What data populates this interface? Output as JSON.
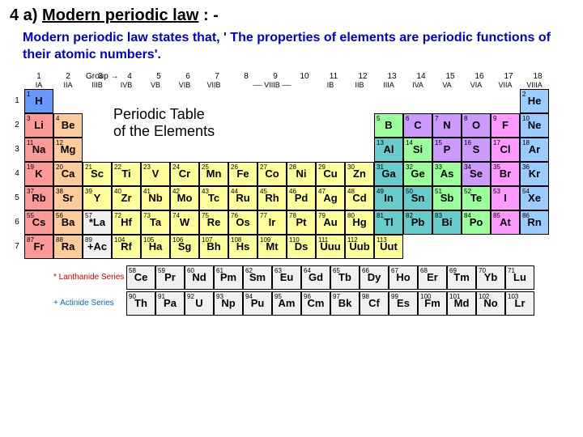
{
  "heading_prefix": "4 a) ",
  "heading_main": "Modern periodic law",
  "heading_suffix": " : -",
  "subheading": "Modern periodic law states that, ' The properties of elements are periodic functions of their atomic numbers'.",
  "inset_title_l1": "Periodic Table",
  "inset_title_l2": "of the Elements",
  "group_arrow": "Group →",
  "groups_top": [
    "1",
    "2",
    "3",
    "4",
    "5",
    "6",
    "7",
    "8",
    "9",
    "10",
    "11",
    "12",
    "13",
    "14",
    "15",
    "16",
    "17",
    "18"
  ],
  "groups_roman": [
    "IA",
    "IIA",
    "IIIB",
    "IVB",
    "VB",
    "VIB",
    "VIIB",
    "── VIIIB ──",
    "IB",
    "IIB",
    "IIIA",
    "IVA",
    "VA",
    "VIA",
    "VIIA",
    "VIIIA"
  ],
  "periods": [
    "1",
    "2",
    "3",
    "4",
    "5",
    "6",
    "7"
  ],
  "lanth_label": "* Lanthanide Series",
  "act_label": "+ Actinide Series",
  "colors": {
    "h": "#6699ff",
    "alkali": "#ff9999",
    "alkaline": "#ffcc99",
    "transition": "#ffff99",
    "metalloid": "#99ff99",
    "postmetal": "#66cccc",
    "nonmetal": "#cc99ff",
    "halogen": "#ff99ff",
    "noble": "#99ccff",
    "lanth": "#f0f0f0",
    "act": "#f0f0f0"
  },
  "elements": {
    "H": {
      "n": "1",
      "c": "h"
    },
    "He": {
      "n": "2",
      "c": "noble"
    },
    "Li": {
      "n": "3",
      "c": "alkali"
    },
    "Be": {
      "n": "4",
      "c": "alkaline"
    },
    "B": {
      "n": "5",
      "c": "metalloid"
    },
    "C": {
      "n": "6",
      "c": "nonmetal"
    },
    "N": {
      "n": "7",
      "c": "nonmetal"
    },
    "O": {
      "n": "8",
      "c": "nonmetal"
    },
    "F": {
      "n": "9",
      "c": "halogen"
    },
    "Ne": {
      "n": "10",
      "c": "noble"
    },
    "Na": {
      "n": "11",
      "c": "alkali"
    },
    "Mg": {
      "n": "12",
      "c": "alkaline"
    },
    "Al": {
      "n": "13",
      "c": "postmetal"
    },
    "Si": {
      "n": "14",
      "c": "metalloid"
    },
    "P": {
      "n": "15",
      "c": "nonmetal"
    },
    "S": {
      "n": "16",
      "c": "nonmetal"
    },
    "Cl": {
      "n": "17",
      "c": "halogen"
    },
    "Ar": {
      "n": "18",
      "c": "noble"
    },
    "K": {
      "n": "19",
      "c": "alkali"
    },
    "Ca": {
      "n": "20",
      "c": "alkaline"
    },
    "Sc": {
      "n": "21",
      "c": "transition"
    },
    "Ti": {
      "n": "22",
      "c": "transition"
    },
    "V": {
      "n": "23",
      "c": "transition"
    },
    "Cr": {
      "n": "24",
      "c": "transition"
    },
    "Mn": {
      "n": "25",
      "c": "transition"
    },
    "Fe": {
      "n": "26",
      "c": "transition"
    },
    "Co": {
      "n": "27",
      "c": "transition"
    },
    "Ni": {
      "n": "28",
      "c": "transition"
    },
    "Cu": {
      "n": "29",
      "c": "transition"
    },
    "Zn": {
      "n": "30",
      "c": "transition"
    },
    "Ga": {
      "n": "31",
      "c": "postmetal"
    },
    "Ge": {
      "n": "32",
      "c": "metalloid"
    },
    "As": {
      "n": "33",
      "c": "metalloid"
    },
    "Se": {
      "n": "34",
      "c": "nonmetal"
    },
    "Br": {
      "n": "35",
      "c": "halogen"
    },
    "Kr": {
      "n": "36",
      "c": "noble"
    },
    "Rb": {
      "n": "37",
      "c": "alkali"
    },
    "Sr": {
      "n": "38",
      "c": "alkaline"
    },
    "Y": {
      "n": "39",
      "c": "transition"
    },
    "Zr": {
      "n": "40",
      "c": "transition"
    },
    "Nb": {
      "n": "41",
      "c": "transition"
    },
    "Mo": {
      "n": "42",
      "c": "transition"
    },
    "Tc": {
      "n": "43",
      "c": "transition"
    },
    "Ru": {
      "n": "44",
      "c": "transition"
    },
    "Rh": {
      "n": "45",
      "c": "transition"
    },
    "Pd": {
      "n": "46",
      "c": "transition"
    },
    "Ag": {
      "n": "47",
      "c": "transition"
    },
    "Cd": {
      "n": "48",
      "c": "transition"
    },
    "In": {
      "n": "49",
      "c": "postmetal"
    },
    "Sn": {
      "n": "50",
      "c": "postmetal"
    },
    "Sb": {
      "n": "51",
      "c": "metalloid"
    },
    "Te": {
      "n": "52",
      "c": "metalloid"
    },
    "I": {
      "n": "53",
      "c": "halogen"
    },
    "Xe": {
      "n": "54",
      "c": "noble"
    },
    "Cs": {
      "n": "55",
      "c": "alkali"
    },
    "Ba": {
      "n": "56",
      "c": "alkaline"
    },
    "*La": {
      "n": "57",
      "c": "lanth"
    },
    "Hf": {
      "n": "72",
      "c": "transition"
    },
    "Ta": {
      "n": "73",
      "c": "transition"
    },
    "W": {
      "n": "74",
      "c": "transition"
    },
    "Re": {
      "n": "75",
      "c": "transition"
    },
    "Os": {
      "n": "76",
      "c": "transition"
    },
    "Ir": {
      "n": "77",
      "c": "transition"
    },
    "Pt": {
      "n": "78",
      "c": "transition"
    },
    "Au": {
      "n": "79",
      "c": "transition"
    },
    "Hg": {
      "n": "80",
      "c": "transition"
    },
    "Tl": {
      "n": "81",
      "c": "postmetal"
    },
    "Pb": {
      "n": "82",
      "c": "postmetal"
    },
    "Bi": {
      "n": "83",
      "c": "postmetal"
    },
    "Po": {
      "n": "84",
      "c": "metalloid"
    },
    "At": {
      "n": "85",
      "c": "halogen"
    },
    "Rn": {
      "n": "86",
      "c": "noble"
    },
    "Fr": {
      "n": "87",
      "c": "alkali"
    },
    "Ra": {
      "n": "88",
      "c": "alkaline"
    },
    "+Ac": {
      "n": "89",
      "c": "act"
    },
    "Rf": {
      "n": "104",
      "c": "transition"
    },
    "Ha": {
      "n": "105",
      "c": "transition"
    },
    "Sg": {
      "n": "106",
      "c": "transition"
    },
    "Bh": {
      "n": "107",
      "c": "transition"
    },
    "Hs": {
      "n": "108",
      "c": "transition"
    },
    "Mt": {
      "n": "109",
      "c": "transition"
    },
    "Ds": {
      "n": "110",
      "c": "transition"
    },
    "Uuu": {
      "n": "111",
      "c": "transition"
    },
    "Uub": {
      "n": "112",
      "c": "transition"
    },
    "Uut": {
      "n": "113",
      "c": "transition"
    },
    "Ce": {
      "n": "58",
      "c": "lanth"
    },
    "Pr": {
      "n": "59",
      "c": "lanth"
    },
    "Nd": {
      "n": "60",
      "c": "lanth"
    },
    "Pm": {
      "n": "61",
      "c": "lanth"
    },
    "Sm": {
      "n": "62",
      "c": "lanth"
    },
    "Eu": {
      "n": "63",
      "c": "lanth"
    },
    "Gd": {
      "n": "64",
      "c": "lanth"
    },
    "Tb": {
      "n": "65",
      "c": "lanth"
    },
    "Dy": {
      "n": "66",
      "c": "lanth"
    },
    "Ho": {
      "n": "67",
      "c": "lanth"
    },
    "Er": {
      "n": "68",
      "c": "lanth"
    },
    "Tm": {
      "n": "69",
      "c": "lanth"
    },
    "Yb": {
      "n": "70",
      "c": "lanth"
    },
    "Lu": {
      "n": "71",
      "c": "lanth"
    },
    "Th": {
      "n": "90",
      "c": "act"
    },
    "Pa": {
      "n": "91",
      "c": "act"
    },
    "U": {
      "n": "92",
      "c": "act"
    },
    "Np": {
      "n": "93",
      "c": "act"
    },
    "Pu": {
      "n": "94",
      "c": "act"
    },
    "Am": {
      "n": "95",
      "c": "act"
    },
    "Cm": {
      "n": "96",
      "c": "act"
    },
    "Bk": {
      "n": "97",
      "c": "act"
    },
    "Cf": {
      "n": "98",
      "c": "act"
    },
    "Es": {
      "n": "99",
      "c": "act"
    },
    "Fm": {
      "n": "100",
      "c": "act"
    },
    "Md": {
      "n": "101",
      "c": "act"
    },
    "No": {
      "n": "102",
      "c": "act"
    },
    "Lr": {
      "n": "103",
      "c": "act"
    }
  },
  "rows": [
    [
      "H",
      null,
      null,
      null,
      null,
      null,
      null,
      null,
      null,
      null,
      null,
      null,
      null,
      null,
      null,
      null,
      null,
      "He"
    ],
    [
      "Li",
      "Be",
      null,
      null,
      null,
      null,
      null,
      null,
      null,
      null,
      null,
      null,
      "B",
      "C",
      "N",
      "O",
      "F",
      "Ne"
    ],
    [
      "Na",
      "Mg",
      null,
      null,
      null,
      null,
      null,
      null,
      null,
      null,
      null,
      null,
      "Al",
      "Si",
      "P",
      "S",
      "Cl",
      "Ar"
    ],
    [
      "K",
      "Ca",
      "Sc",
      "Ti",
      "V",
      "Cr",
      "Mn",
      "Fe",
      "Co",
      "Ni",
      "Cu",
      "Zn",
      "Ga",
      "Ge",
      "As",
      "Se",
      "Br",
      "Kr"
    ],
    [
      "Rb",
      "Sr",
      "Y",
      "Zr",
      "Nb",
      "Mo",
      "Tc",
      "Ru",
      "Rh",
      "Pd",
      "Ag",
      "Cd",
      "In",
      "Sn",
      "Sb",
      "Te",
      "I",
      "Xe"
    ],
    [
      "Cs",
      "Ba",
      "*La",
      "Hf",
      "Ta",
      "W",
      "Re",
      "Os",
      "Ir",
      "Pt",
      "Au",
      "Hg",
      "Tl",
      "Pb",
      "Bi",
      "Po",
      "At",
      "Rn"
    ],
    [
      "Fr",
      "Ra",
      "+Ac",
      "Rf",
      "Ha",
      "Sg",
      "Bh",
      "Hs",
      "Mt",
      "Ds",
      "Uuu",
      "Uub",
      "Uut",
      null,
      null,
      null,
      null,
      null
    ]
  ],
  "lanth_row": [
    "Ce",
    "Pr",
    "Nd",
    "Pm",
    "Sm",
    "Eu",
    "Gd",
    "Tb",
    "Dy",
    "Ho",
    "Er",
    "Tm",
    "Yb",
    "Lu"
  ],
  "act_row": [
    "Th",
    "Pa",
    "U",
    "Np",
    "Pu",
    "Am",
    "Cm",
    "Bk",
    "Cf",
    "Es",
    "Fm",
    "Md",
    "No",
    "Lr"
  ]
}
